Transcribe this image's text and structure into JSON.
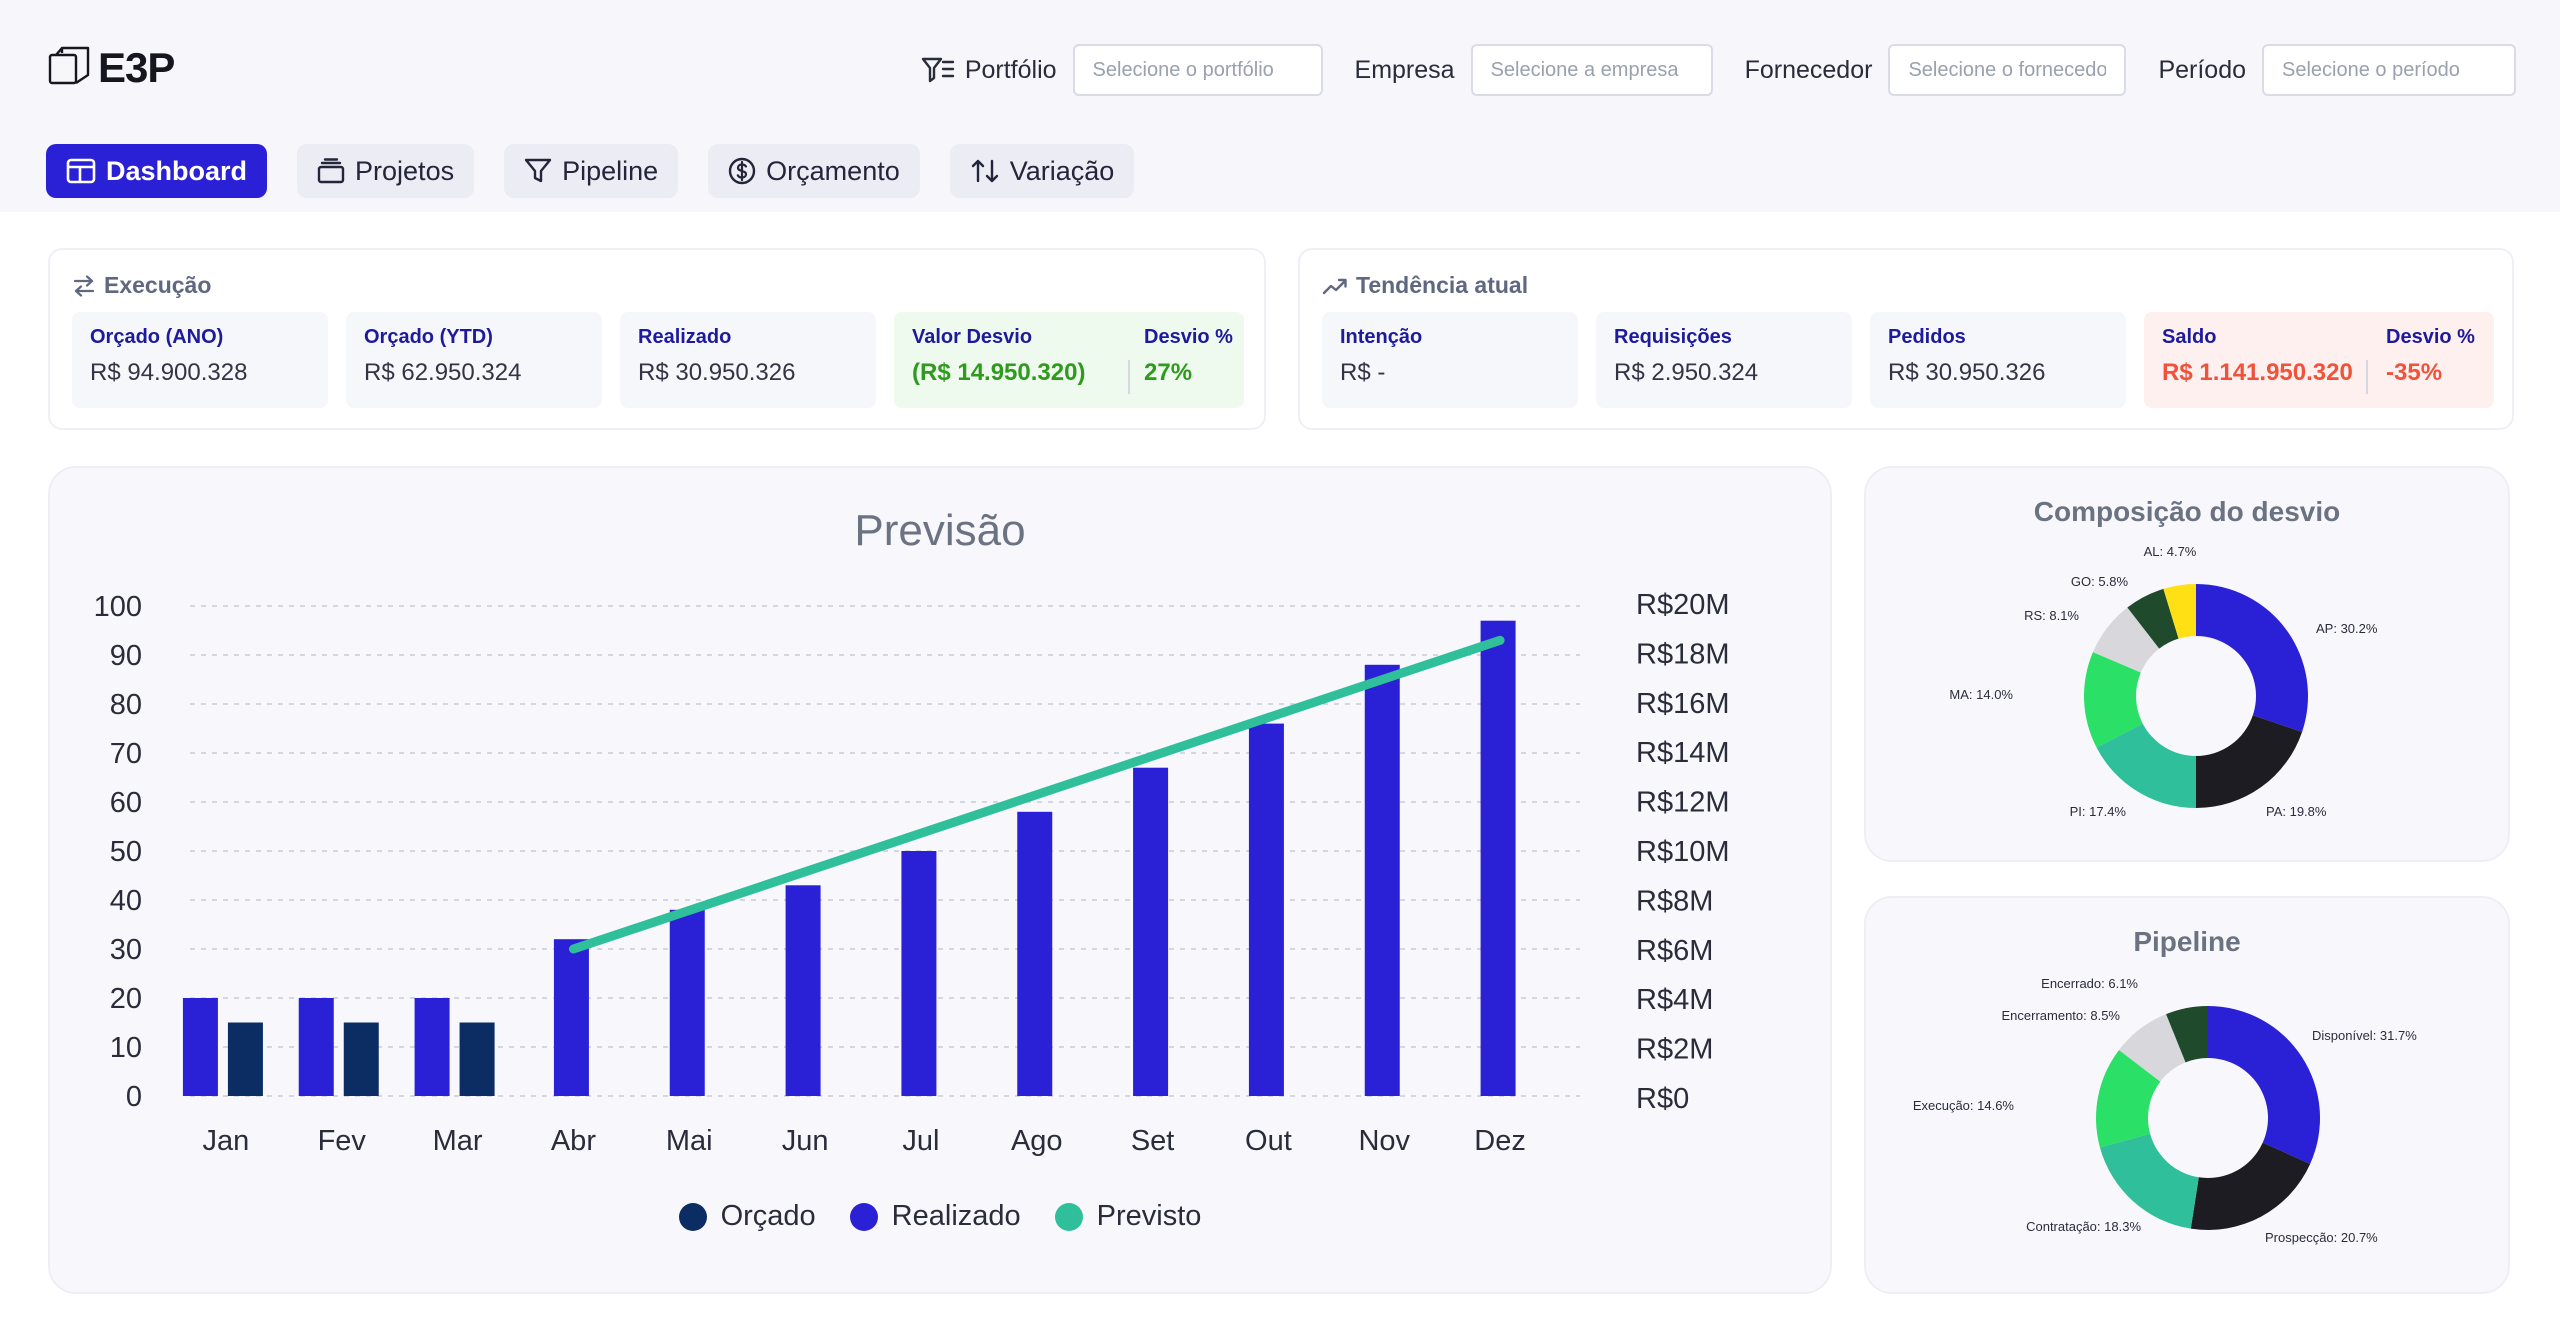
{
  "app": {
    "logo_text": "E3P"
  },
  "filters": [
    {
      "label": "Portfólio",
      "placeholder": "Selecione o portfólio",
      "has_icon": true
    },
    {
      "label": "Empresa",
      "placeholder": "Selecione a empresa"
    },
    {
      "label": "Fornecedor",
      "placeholder": "Selecione o fornecedor"
    },
    {
      "label": "Período",
      "placeholder": "Selecione o período"
    }
  ],
  "tabs": [
    {
      "label": "Dashboard",
      "icon": "layout-icon",
      "active": true
    },
    {
      "label": "Projetos",
      "icon": "layers-icon"
    },
    {
      "label": "Pipeline",
      "icon": "funnel-icon"
    },
    {
      "label": "Orçamento",
      "icon": "dollar-circle-icon"
    },
    {
      "label": "Variação",
      "icon": "arrows-up-down-icon"
    }
  ],
  "execucao": {
    "title": "Execução",
    "orcado_ano": {
      "label": "Orçado (ANO)",
      "value": "R$ 94.900.328"
    },
    "orcado_ytd": {
      "label": "Orçado (YTD)",
      "value": "R$ 62.950.324"
    },
    "realizado": {
      "label": "Realizado",
      "value": "R$ 30.950.326"
    },
    "valor_desvio": {
      "label": "Valor Desvio",
      "value": "(R$ 14.950.320)"
    },
    "desvio_pct": {
      "label": "Desvio %",
      "value": "27%"
    }
  },
  "tendencia": {
    "title": "Tendência atual",
    "intencao": {
      "label": "Intenção",
      "value": "R$ -"
    },
    "requisicoes": {
      "label": "Requisições",
      "value": "R$ 2.950.324"
    },
    "pedidos": {
      "label": "Pedidos",
      "value": "R$ 30.950.326"
    },
    "saldo": {
      "label": "Saldo",
      "value": "R$ 1.141.950.320"
    },
    "desvio_pct": {
      "label": "Desvio %",
      "value": "-35%"
    }
  },
  "colors": {
    "primary": "#2a20d6",
    "realizado": "#2a20d6",
    "orcado": "#0c2d63",
    "previsto": "#2fbf9a",
    "green_text": "#2f9a1e",
    "red_text": "#f0523a"
  },
  "chart_data": [
    {
      "type": "bar",
      "title": "Previsão",
      "categories": [
        "Jan",
        "Fev",
        "Mar",
        "Abr",
        "Mai",
        "Jun",
        "Jul",
        "Ago",
        "Set",
        "Out",
        "Nov",
        "Dez"
      ],
      "ylim": [
        0,
        100
      ],
      "y_ticks": [
        100,
        90,
        80,
        70,
        60,
        50,
        40,
        30,
        20,
        10,
        0
      ],
      "y2_ticks": [
        "R$20M",
        "R$18M",
        "R$16M",
        "R$14M",
        "R$12M",
        "R$10M",
        "R$8M",
        "R$6M",
        "R$4M",
        "R$2M",
        "R$0"
      ],
      "y2lim": [
        0,
        20
      ],
      "grid": true,
      "legend_position": "bottom",
      "series": [
        {
          "name": "Orçado",
          "type": "bar",
          "color": "#0c2d63",
          "values": [
            15,
            15,
            15,
            null,
            null,
            null,
            null,
            null,
            null,
            null,
            null,
            null
          ]
        },
        {
          "name": "Realizado",
          "type": "bar",
          "color": "#2a20d6",
          "values": [
            20,
            20,
            20,
            32,
            38,
            43,
            50,
            58,
            67,
            76,
            88,
            97
          ]
        },
        {
          "name": "Previsto",
          "type": "line",
          "color": "#2fbf9a",
          "values": [
            null,
            null,
            null,
            30,
            null,
            null,
            null,
            null,
            null,
            null,
            null,
            93
          ]
        }
      ]
    },
    {
      "type": "pie",
      "title": "Composição do desvio",
      "slices": [
        {
          "label": "AP",
          "value": 30.2,
          "text": "AP: 30.2%",
          "color": "#2a20d6"
        },
        {
          "label": "PA",
          "value": 19.8,
          "text": "PA: 19.8%",
          "color": "#1c1c22"
        },
        {
          "label": "PI",
          "value": 17.4,
          "text": "PI: 17.4%",
          "color": "#2fbf9a"
        },
        {
          "label": "MA",
          "value": 14.0,
          "text": "MA: 14.0%",
          "color": "#2be067"
        },
        {
          "label": "RS",
          "value": 8.1,
          "text": "RS: 8.1%",
          "color": "#d8d8dc"
        },
        {
          "label": "GO",
          "value": 5.8,
          "text": "GO: 5.8%",
          "color": "#1f4a2c"
        },
        {
          "label": "AL",
          "value": 4.7,
          "text": "AL: 4.7%",
          "color": "#ffe014"
        }
      ]
    },
    {
      "type": "pie",
      "title": "Pipeline",
      "slices": [
        {
          "label": "Disponível",
          "value": 31.7,
          "text": "Disponível: 31.7%",
          "color": "#2a20d6"
        },
        {
          "label": "Prospecção",
          "value": 20.7,
          "text": "Prospecção: 20.7%",
          "color": "#1c1c22"
        },
        {
          "label": "Contratação",
          "value": 18.3,
          "text": "Contratação: 18.3%",
          "color": "#2fbf9a"
        },
        {
          "label": "Execução",
          "value": 14.6,
          "text": "Execução: 14.6%",
          "color": "#2be067"
        },
        {
          "label": "Encerramento",
          "value": 8.5,
          "text": "Encerramento: 8.5%",
          "color": "#d8d8dc"
        },
        {
          "label": "Encerrado",
          "value": 6.1,
          "text": "Encerrado: 6.1%",
          "color": "#1f4a2c"
        }
      ]
    }
  ]
}
